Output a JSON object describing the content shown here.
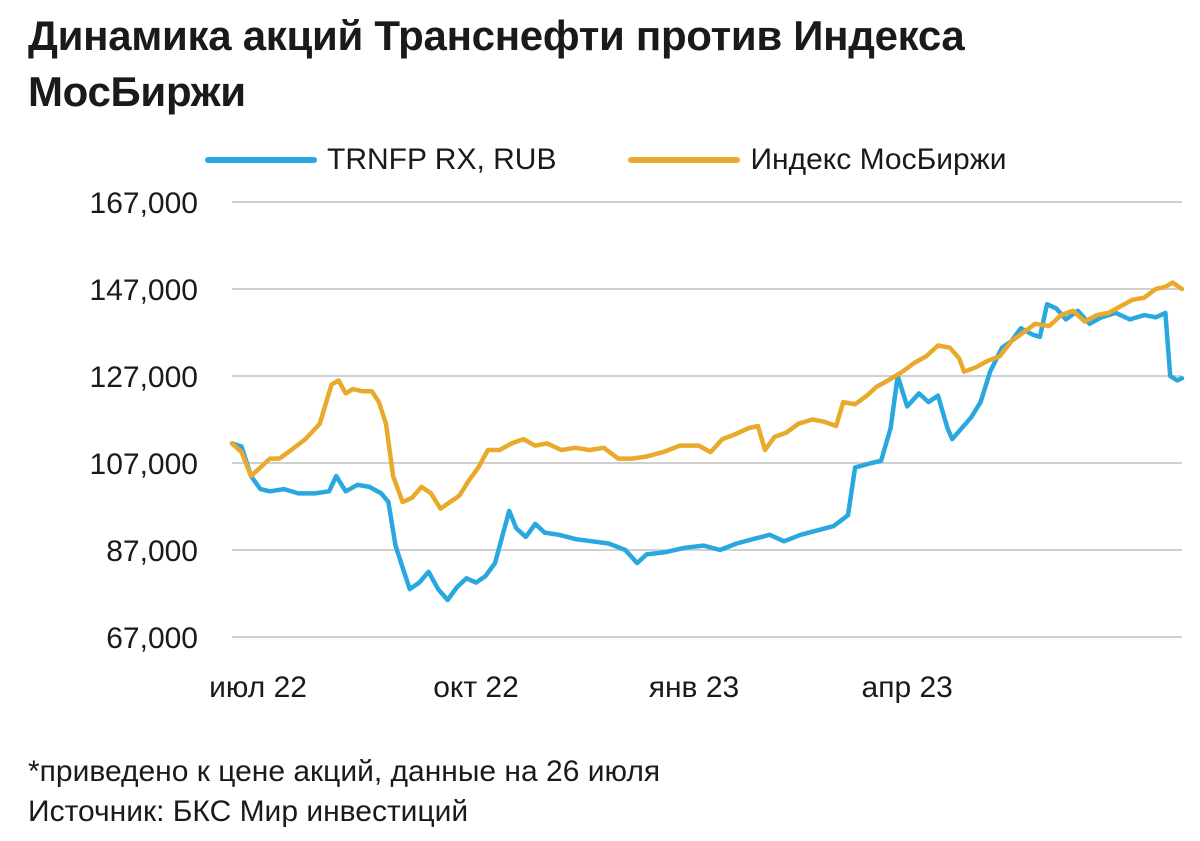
{
  "header": {
    "title": "Динамика акций Транснефти против Индекса МосБиржи"
  },
  "footnotes": {
    "note": "*приведено к цене акций, данные на 26 июля",
    "source": "Источник: БКС Мир инвестиций"
  },
  "chart_data": {
    "type": "line",
    "title": "Динамика акций Транснефти против Индекса МосБиржи",
    "xlabel": "",
    "ylabel": "",
    "legend_position": "top",
    "grid": true,
    "ylim": [
      67000,
      167000
    ],
    "yticks": [
      67000,
      87000,
      107000,
      127000,
      147000,
      167000
    ],
    "ytick_labels": [
      "67,000",
      "87,000",
      "107,000",
      "127,000",
      "147,000",
      "167,000"
    ],
    "x_range": [
      "2022-06-20",
      "2023-07-26"
    ],
    "xticks": [
      {
        "date": "2022-07-01",
        "label": "июл 22"
      },
      {
        "date": "2022-10-01",
        "label": "окт 22"
      },
      {
        "date": "2023-01-01",
        "label": "янв 23"
      },
      {
        "date": "2023-04-01",
        "label": "апр 23"
      }
    ],
    "series": [
      {
        "name": "TRNFP RX, RUB",
        "color": "#29a8e0",
        "points": [
          [
            "2022-06-20",
            111500
          ],
          [
            "2022-06-24",
            110800
          ],
          [
            "2022-06-28",
            104000
          ],
          [
            "2022-07-02",
            101000
          ],
          [
            "2022-07-06",
            100500
          ],
          [
            "2022-07-12",
            101000
          ],
          [
            "2022-07-18",
            100000
          ],
          [
            "2022-07-25",
            100000
          ],
          [
            "2022-07-31",
            100500
          ],
          [
            "2022-08-03",
            104000
          ],
          [
            "2022-08-07",
            100500
          ],
          [
            "2022-08-12",
            102000
          ],
          [
            "2022-08-17",
            101500
          ],
          [
            "2022-08-22",
            100000
          ],
          [
            "2022-08-25",
            98000
          ],
          [
            "2022-08-28",
            88000
          ],
          [
            "2022-08-31",
            83000
          ],
          [
            "2022-09-03",
            78000
          ],
          [
            "2022-09-07",
            79500
          ],
          [
            "2022-09-11",
            82000
          ],
          [
            "2022-09-15",
            78000
          ],
          [
            "2022-09-19",
            75500
          ],
          [
            "2022-09-23",
            78500
          ],
          [
            "2022-09-27",
            80500
          ],
          [
            "2022-10-01",
            79500
          ],
          [
            "2022-10-05",
            81000
          ],
          [
            "2022-10-09",
            84000
          ],
          [
            "2022-10-12",
            90000
          ],
          [
            "2022-10-15",
            96000
          ],
          [
            "2022-10-18",
            92000
          ],
          [
            "2022-10-22",
            90000
          ],
          [
            "2022-10-26",
            93000
          ],
          [
            "2022-10-30",
            91000
          ],
          [
            "2022-11-05",
            90500
          ],
          [
            "2022-11-12",
            89500
          ],
          [
            "2022-11-19",
            89000
          ],
          [
            "2022-11-26",
            88500
          ],
          [
            "2022-12-03",
            87000
          ],
          [
            "2022-12-08",
            84000
          ],
          [
            "2022-12-12",
            86000
          ],
          [
            "2022-12-20",
            86500
          ],
          [
            "2022-12-28",
            87500
          ],
          [
            "2023-01-05",
            88000
          ],
          [
            "2023-01-12",
            87000
          ],
          [
            "2023-01-19",
            88500
          ],
          [
            "2023-01-26",
            89500
          ],
          [
            "2023-02-02",
            90500
          ],
          [
            "2023-02-08",
            89000
          ],
          [
            "2023-02-15",
            90500
          ],
          [
            "2023-02-22",
            91500
          ],
          [
            "2023-03-01",
            92500
          ],
          [
            "2023-03-07",
            95000
          ],
          [
            "2023-03-10",
            106000
          ],
          [
            "2023-03-17",
            107000
          ],
          [
            "2023-03-21",
            107500
          ],
          [
            "2023-03-25",
            115000
          ],
          [
            "2023-03-28",
            127000
          ],
          [
            "2023-04-01",
            120000
          ],
          [
            "2023-04-06",
            123000
          ],
          [
            "2023-04-10",
            121000
          ],
          [
            "2023-04-14",
            122500
          ],
          [
            "2023-04-18",
            115000
          ],
          [
            "2023-04-20",
            112500
          ],
          [
            "2023-04-24",
            115000
          ],
          [
            "2023-04-28",
            117500
          ],
          [
            "2023-05-02",
            121000
          ],
          [
            "2023-05-06",
            128000
          ],
          [
            "2023-05-11",
            133500
          ],
          [
            "2023-05-15",
            135000
          ],
          [
            "2023-05-19",
            138000
          ],
          [
            "2023-05-24",
            136500
          ],
          [
            "2023-05-27",
            136000
          ],
          [
            "2023-05-30",
            143500
          ],
          [
            "2023-06-03",
            142500
          ],
          [
            "2023-06-07",
            140000
          ],
          [
            "2023-06-12",
            142000
          ],
          [
            "2023-06-17",
            139000
          ],
          [
            "2023-06-22",
            140500
          ],
          [
            "2023-06-28",
            141500
          ],
          [
            "2023-07-04",
            140000
          ],
          [
            "2023-07-10",
            141000
          ],
          [
            "2023-07-15",
            140500
          ],
          [
            "2023-07-19",
            141500
          ],
          [
            "2023-07-21",
            127000
          ],
          [
            "2023-07-24",
            126000
          ],
          [
            "2023-07-26",
            126500
          ]
        ]
      },
      {
        "name": "Индекс МосБиржи",
        "color": "#e9a92a",
        "points": [
          [
            "2022-06-20",
            111500
          ],
          [
            "2022-06-24",
            109500
          ],
          [
            "2022-06-28",
            104000
          ],
          [
            "2022-07-02",
            106000
          ],
          [
            "2022-07-06",
            108000
          ],
          [
            "2022-07-10",
            108000
          ],
          [
            "2022-07-15",
            110000
          ],
          [
            "2022-07-21",
            112500
          ],
          [
            "2022-07-27",
            116000
          ],
          [
            "2022-08-01",
            125000
          ],
          [
            "2022-08-04",
            126000
          ],
          [
            "2022-08-07",
            123000
          ],
          [
            "2022-08-10",
            124000
          ],
          [
            "2022-08-14",
            123500
          ],
          [
            "2022-08-18",
            123500
          ],
          [
            "2022-08-21",
            121000
          ],
          [
            "2022-08-24",
            116000
          ],
          [
            "2022-08-27",
            104000
          ],
          [
            "2022-08-31",
            98000
          ],
          [
            "2022-09-04",
            99000
          ],
          [
            "2022-09-08",
            101500
          ],
          [
            "2022-09-12",
            100000
          ],
          [
            "2022-09-16",
            96500
          ],
          [
            "2022-09-20",
            98000
          ],
          [
            "2022-09-24",
            99500
          ],
          [
            "2022-09-28",
            103000
          ],
          [
            "2022-10-02",
            106000
          ],
          [
            "2022-10-06",
            110000
          ],
          [
            "2022-10-11",
            110000
          ],
          [
            "2022-10-16",
            111500
          ],
          [
            "2022-10-21",
            112500
          ],
          [
            "2022-10-26",
            111000
          ],
          [
            "2022-10-31",
            111500
          ],
          [
            "2022-11-06",
            110000
          ],
          [
            "2022-11-12",
            110500
          ],
          [
            "2022-11-18",
            110000
          ],
          [
            "2022-11-24",
            110500
          ],
          [
            "2022-11-30",
            108000
          ],
          [
            "2022-12-06",
            108000
          ],
          [
            "2022-12-12",
            108500
          ],
          [
            "2022-12-19",
            109500
          ],
          [
            "2022-12-26",
            111000
          ],
          [
            "2023-01-03",
            111000
          ],
          [
            "2023-01-08",
            109500
          ],
          [
            "2023-01-13",
            112500
          ],
          [
            "2023-01-18",
            113500
          ],
          [
            "2023-01-24",
            115000
          ],
          [
            "2023-01-28",
            115500
          ],
          [
            "2023-01-31",
            110000
          ],
          [
            "2023-02-04",
            113000
          ],
          [
            "2023-02-09",
            114000
          ],
          [
            "2023-02-14",
            116000
          ],
          [
            "2023-02-20",
            117000
          ],
          [
            "2023-02-25",
            116500
          ],
          [
            "2023-03-02",
            115500
          ],
          [
            "2023-03-05",
            121000
          ],
          [
            "2023-03-10",
            120500
          ],
          [
            "2023-03-15",
            122500
          ],
          [
            "2023-03-19",
            124500
          ],
          [
            "2023-03-24",
            126000
          ],
          [
            "2023-03-30",
            128000
          ],
          [
            "2023-04-04",
            130000
          ],
          [
            "2023-04-09",
            131500
          ],
          [
            "2023-04-14",
            134000
          ],
          [
            "2023-04-19",
            133500
          ],
          [
            "2023-04-23",
            131000
          ],
          [
            "2023-04-25",
            128000
          ],
          [
            "2023-04-30",
            129000
          ],
          [
            "2023-05-05",
            130500
          ],
          [
            "2023-05-10",
            131500
          ],
          [
            "2023-05-15",
            135000
          ],
          [
            "2023-05-20",
            137000
          ],
          [
            "2023-05-25",
            139000
          ],
          [
            "2023-05-31",
            138500
          ],
          [
            "2023-06-05",
            141000
          ],
          [
            "2023-06-10",
            142000
          ],
          [
            "2023-06-15",
            139500
          ],
          [
            "2023-06-20",
            141000
          ],
          [
            "2023-06-25",
            141500
          ],
          [
            "2023-06-30",
            143000
          ],
          [
            "2023-07-05",
            144500
          ],
          [
            "2023-07-10",
            145000
          ],
          [
            "2023-07-15",
            147000
          ],
          [
            "2023-07-19",
            147500
          ],
          [
            "2023-07-22",
            148500
          ],
          [
            "2023-07-26",
            147000
          ]
        ]
      }
    ]
  }
}
